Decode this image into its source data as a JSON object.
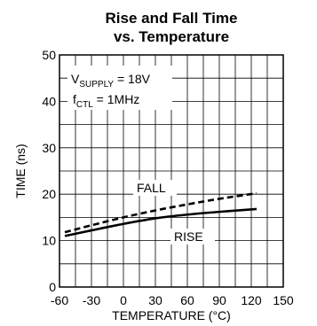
{
  "chart_data": {
    "type": "line",
    "title": "Rise and Fall Time",
    "subtitle": "vs. Temperature",
    "xlabel": "TEMPERATURE (°C)",
    "ylabel": "TIME (ns)",
    "xlim": [
      -60,
      150
    ],
    "ylim": [
      0,
      50
    ],
    "x_ticks": [
      "-60",
      "-30",
      "0",
      "30",
      "60",
      "90",
      "120",
      "150"
    ],
    "y_ticks": [
      "0",
      "10",
      "20",
      "30",
      "40",
      "50"
    ],
    "grid": true,
    "annotation": {
      "line1_main": "V",
      "line1_sub": "SUPPLY",
      "line1_rest": " = 18V",
      "line2_main": "f",
      "line2_sub": "CTL",
      "line2_rest": " = 1MHz"
    },
    "series": [
      {
        "name": "FALL",
        "style": "dashed",
        "x": [
          -55,
          -30,
          0,
          30,
          60,
          90,
          125
        ],
        "y": [
          11.8,
          13.3,
          15.0,
          16.5,
          17.8,
          19.0,
          20.2
        ]
      },
      {
        "name": "RISE",
        "style": "solid",
        "x": [
          -55,
          -30,
          0,
          30,
          60,
          90,
          125
        ],
        "y": [
          11.0,
          12.2,
          13.6,
          14.8,
          15.6,
          16.2,
          16.8
        ]
      }
    ]
  }
}
